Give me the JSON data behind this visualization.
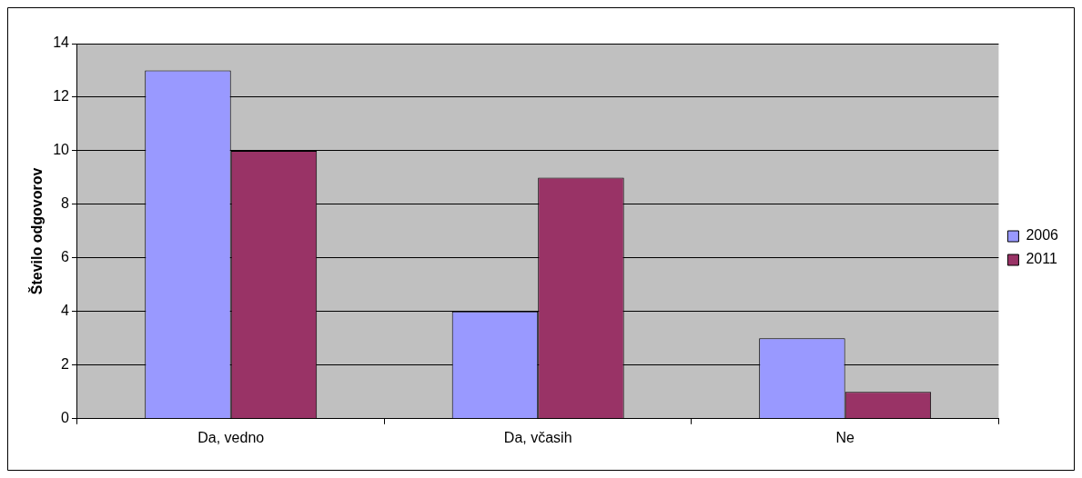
{
  "chart_data": {
    "type": "bar",
    "ylabel": "Število odgovorov",
    "categories": [
      "Da, vedno",
      "Da, včasih",
      "Ne"
    ],
    "series": [
      {
        "name": "2006",
        "color": "#9999ff",
        "values": [
          13,
          4,
          3
        ]
      },
      {
        "name": "2011",
        "color": "#993366",
        "values": [
          10,
          9,
          1
        ]
      }
    ],
    "ylim": [
      0,
      14
    ],
    "yticks": [
      0,
      2,
      4,
      6,
      8,
      10,
      12,
      14
    ],
    "grid": "y",
    "legend": "right"
  }
}
